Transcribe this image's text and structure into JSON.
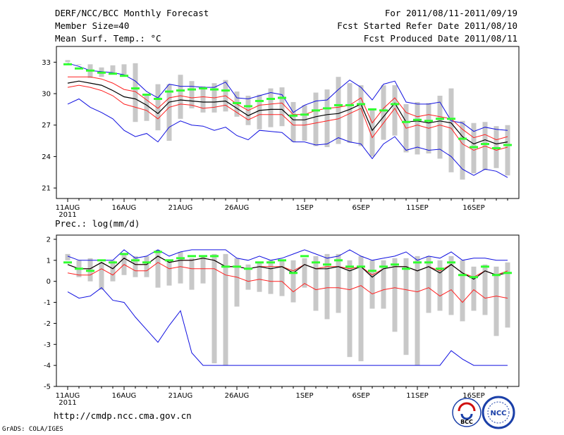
{
  "header": {
    "title": "DERF/NCC/BCC Monthly Forecast",
    "member_size": "Member Size=40",
    "variable": "Mean Surf. Temp.: °C",
    "period": "For 2011/08/11-2011/09/19",
    "started": "Fcst Started Refer Date 2011/08/10",
    "produced": "Fcst Produced Date 2011/08/11"
  },
  "footer": {
    "url": "http://cmdp.ncc.cma.gov.cn",
    "credit": "GrADS: COLA/IGES",
    "logo_bcc": "BCC",
    "logo_ncc": "NCC"
  },
  "colors": {
    "ensemble_bounds": "#1010e0",
    "spread": "#ff2020",
    "mean": "#000000",
    "observed": "#30ff30",
    "box": "#c8c8c8"
  },
  "chart_data": [
    {
      "type": "line",
      "title": "Mean Surf. Temp.: °C",
      "x_ticks": [
        "11AUG",
        "16AUG",
        "21AUG",
        "26AUG",
        "1SEP",
        "6SEP",
        "11SEP",
        "16SEP"
      ],
      "x_tick_days": [
        0,
        5,
        10,
        15,
        21,
        26,
        31,
        36
      ],
      "x_year_label": "2011",
      "x_range": [
        -1,
        40
      ],
      "ylim": [
        20,
        34.5
      ],
      "y_ticks": [
        21,
        24,
        27,
        30,
        33
      ],
      "box_low": [
        33.2,
        32.8,
        31.5,
        31.6,
        31.9,
        31.8,
        27.3,
        27.4,
        26.5,
        25.5,
        27.6,
        28.6,
        28.2,
        28.2,
        28.3,
        27.8,
        27.0,
        26.6,
        26.8,
        26.9,
        25.4,
        25.5,
        25.0,
        24.9,
        25.2,
        25.3,
        25.0,
        24.0,
        25.6,
        26.0,
        24.4,
        24.2,
        24.3,
        23.8,
        22.5,
        21.8,
        22.4,
        22.7,
        22.9,
        22.2
      ],
      "box_high": [
        33.0,
        32.8,
        32.8,
        32.5,
        32.7,
        32.8,
        32.9,
        29.9,
        30.9,
        30.9,
        31.8,
        31.2,
        30.7,
        31.0,
        31.3,
        30.2,
        29.8,
        29.9,
        30.5,
        30.6,
        29.2,
        28.9,
        30.1,
        30.4,
        31.6,
        31.0,
        30.8,
        28.6,
        30.8,
        30.8,
        29.0,
        29.2,
        29.1,
        29.8,
        30.5,
        27.4,
        27.2,
        27.3,
        26.9,
        27.0
      ],
      "series": [
        {
          "name": "ensemble max",
          "values": [
            32.9,
            32.6,
            32.2,
            32.1,
            32.0,
            31.8,
            31.2,
            30.2,
            29.6,
            30.9,
            30.7,
            30.7,
            30.6,
            30.6,
            31.1,
            29.6,
            29.5,
            29.8,
            30.1,
            29.9,
            28.2,
            28.9,
            29.3,
            29.4,
            30.4,
            31.3,
            30.6,
            29.4,
            30.9,
            31.2,
            29.2,
            29.0,
            29.0,
            29.2,
            27.4,
            27.2,
            26.4,
            26.8,
            26.6,
            26.5
          ]
        },
        {
          "name": "spread upper",
          "values": [
            31.6,
            31.6,
            31.6,
            31.4,
            31.0,
            30.4,
            30.2,
            29.4,
            28.6,
            29.6,
            29.8,
            29.6,
            29.7,
            29.6,
            29.8,
            29.0,
            28.4,
            28.9,
            29.0,
            29.1,
            28.0,
            28.0,
            28.4,
            28.6,
            28.7,
            28.9,
            29.6,
            27.2,
            28.6,
            29.6,
            28.2,
            27.8,
            28.0,
            27.8,
            27.6,
            26.6,
            25.8,
            26.1,
            25.6,
            25.9
          ]
        },
        {
          "name": "ensemble mean",
          "values": [
            31.0,
            31.2,
            31.0,
            30.8,
            30.3,
            29.7,
            29.5,
            28.9,
            28.1,
            29.2,
            29.4,
            29.3,
            29.2,
            29.2,
            29.3,
            28.6,
            27.9,
            28.4,
            28.5,
            28.5,
            27.5,
            27.5,
            27.8,
            28.0,
            28.1,
            28.5,
            29.0,
            26.5,
            27.8,
            29.1,
            27.3,
            27.4,
            27.2,
            27.4,
            27.2,
            25.9,
            25.2,
            25.6,
            25.2,
            25.4
          ]
        },
        {
          "name": "spread lower",
          "values": [
            30.6,
            30.8,
            30.6,
            30.3,
            29.8,
            29.0,
            28.7,
            28.4,
            27.6,
            28.7,
            29.0,
            28.9,
            28.6,
            28.7,
            28.9,
            28.2,
            27.5,
            28.0,
            28.0,
            28.0,
            27.0,
            27.0,
            27.2,
            27.4,
            27.6,
            28.1,
            28.6,
            25.8,
            27.2,
            28.6,
            26.7,
            27.0,
            26.7,
            27.0,
            26.7,
            25.2,
            24.6,
            25.0,
            24.6,
            24.9
          ]
        },
        {
          "name": "ensemble min",
          "values": [
            29.0,
            29.5,
            28.7,
            28.2,
            27.6,
            26.5,
            25.9,
            26.2,
            25.4,
            26.8,
            27.4,
            27.0,
            26.9,
            26.5,
            26.8,
            26.0,
            25.6,
            26.5,
            26.4,
            26.3,
            25.4,
            25.4,
            25.1,
            25.2,
            25.8,
            25.4,
            25.2,
            23.8,
            25.2,
            25.9,
            24.6,
            24.9,
            24.6,
            24.7,
            24.0,
            22.8,
            22.2,
            22.8,
            22.6,
            22.0
          ]
        }
      ],
      "observed": [
        32.8,
        32.4,
        32.2,
        32.0,
        31.9,
        31.7,
        30.5,
        29.9,
        29.5,
        30.2,
        30.3,
        30.4,
        30.5,
        30.4,
        30.3,
        29.1,
        28.8,
        29.3,
        29.5,
        29.6,
        27.9,
        28.0,
        28.4,
        28.6,
        28.9,
        28.9,
        29.0,
        28.5,
        28.4,
        29.0,
        27.3,
        27.5,
        27.4,
        27.6,
        27.6,
        25.7,
        24.9,
        25.2,
        24.8,
        25.1
      ]
    },
    {
      "type": "line",
      "title": "Prec.: log(mm/d)",
      "x_ticks": [
        "11AUG",
        "16AUG",
        "21AUG",
        "26AUG",
        "1SEP",
        "6SEP",
        "11SEP",
        "16SEP"
      ],
      "x_tick_days": [
        0,
        5,
        10,
        15,
        21,
        26,
        31,
        36
      ],
      "x_year_label": "2011",
      "x_range": [
        -1,
        40
      ],
      "ylim": [
        -5,
        2.2
      ],
      "y_ticks": [
        -5,
        -4,
        -3,
        -2,
        -1,
        0,
        1,
        2
      ],
      "box_low": [
        1.0,
        0.2,
        0.0,
        -0.4,
        0.0,
        0.3,
        0.2,
        0.2,
        -0.3,
        -0.2,
        -0.1,
        -0.4,
        -0.1,
        -3.9,
        -4.0,
        -1.2,
        -0.4,
        -0.5,
        -0.6,
        -0.7,
        -1.0,
        -0.3,
        -1.4,
        -1.8,
        -1.5,
        -3.6,
        -3.8,
        -1.3,
        -1.3,
        -2.4,
        -3.5,
        -4.0,
        -1.5,
        -1.4,
        -1.6,
        -1.9,
        -1.4,
        -1.6,
        -2.6,
        -2.2
      ],
      "box_high": [
        1.3,
        1.0,
        1.1,
        0.9,
        1.0,
        1.3,
        1.2,
        1.2,
        1.5,
        1.0,
        1.4,
        1.1,
        1.2,
        1.3,
        1.3,
        1.1,
        0.8,
        0.9,
        1.0,
        1.0,
        1.0,
        1.1,
        1.2,
        1.3,
        1.3,
        1.0,
        1.2,
        1.0,
        1.0,
        1.1,
        1.1,
        1.2,
        1.2,
        1.0,
        1.2,
        1.0,
        0.7,
        0.8,
        0.7,
        0.9
      ],
      "series": [
        {
          "name": "ensemble max",
          "values": [
            1.2,
            1.0,
            1.0,
            1.0,
            1.0,
            1.5,
            1.1,
            1.2,
            1.5,
            1.2,
            1.4,
            1.5,
            1.5,
            1.5,
            1.5,
            1.1,
            1.0,
            1.2,
            1.0,
            1.1,
            1.3,
            1.5,
            1.3,
            1.1,
            1.2,
            1.5,
            1.2,
            1.0,
            1.1,
            1.2,
            1.4,
            1.0,
            1.2,
            1.1,
            1.4,
            1.0,
            1.1,
            1.1,
            1.0,
            1.0
          ]
        },
        {
          "name": "spread upper",
          "values": [
            0.8,
            0.6,
            0.6,
            0.9,
            0.6,
            1.1,
            0.8,
            0.8,
            1.2,
            0.9,
            1.0,
            1.0,
            1.1,
            1.0,
            0.7,
            0.7,
            0.6,
            0.7,
            0.7,
            0.7,
            0.5,
            0.8,
            0.6,
            0.7,
            0.7,
            0.6,
            0.7,
            0.3,
            0.6,
            0.7,
            0.7,
            0.5,
            0.7,
            0.5,
            0.8,
            0.4,
            0.2,
            0.5,
            0.3,
            0.5
          ]
        },
        {
          "name": "ensemble mean",
          "values": [
            0.8,
            0.6,
            0.6,
            0.9,
            0.6,
            1.1,
            0.8,
            0.8,
            1.2,
            0.9,
            1.0,
            1.0,
            1.1,
            1.0,
            0.7,
            0.7,
            0.6,
            0.7,
            0.6,
            0.7,
            0.4,
            0.8,
            0.6,
            0.6,
            0.7,
            0.5,
            0.7,
            0.2,
            0.6,
            0.7,
            0.7,
            0.5,
            0.7,
            0.4,
            0.8,
            0.4,
            0.1,
            0.5,
            0.3,
            0.4
          ]
        },
        {
          "name": "spread lower",
          "values": [
            0.4,
            0.3,
            0.3,
            0.6,
            0.3,
            0.8,
            0.5,
            0.5,
            0.9,
            0.6,
            0.7,
            0.6,
            0.6,
            0.6,
            0.3,
            0.2,
            0.0,
            0.1,
            0.0,
            0.0,
            -0.5,
            -0.1,
            -0.4,
            -0.3,
            -0.3,
            -0.4,
            -0.2,
            -0.6,
            -0.4,
            -0.3,
            -0.4,
            -0.5,
            -0.3,
            -0.7,
            -0.4,
            -1.0,
            -0.4,
            -0.8,
            -0.7,
            -0.8
          ]
        },
        {
          "name": "ensemble min",
          "values": [
            -0.5,
            -0.8,
            -0.7,
            -0.3,
            -0.9,
            -1.0,
            -1.7,
            -2.3,
            -2.9,
            -2.1,
            -1.4,
            -3.4,
            -4.0,
            -4.0,
            -4.0,
            -4.0,
            -4.0,
            -4.0,
            -4.0,
            -4.0,
            -4.0,
            -4.0,
            -4.0,
            -4.0,
            -4.0,
            -4.0,
            -4.0,
            -4.0,
            -4.0,
            -4.0,
            -4.0,
            -4.0,
            -4.0,
            -4.0,
            -3.3,
            -3.7,
            -4.0,
            -4.0,
            -4.0,
            -4.0
          ]
        }
      ],
      "observed": [
        0.9,
        0.6,
        0.5,
        1.0,
        0.9,
        1.3,
        1.0,
        0.9,
        1.4,
        1.0,
        1.1,
        1.2,
        1.2,
        1.2,
        0.7,
        0.7,
        0.6,
        0.9,
        0.9,
        1.0,
        0.4,
        1.2,
        0.9,
        0.8,
        1.0,
        0.7,
        0.7,
        0.5,
        0.7,
        0.8,
        0.6,
        0.9,
        0.9,
        0.6,
        0.9,
        0.3,
        0.2,
        0.7,
        0.3,
        0.4
      ]
    }
  ]
}
